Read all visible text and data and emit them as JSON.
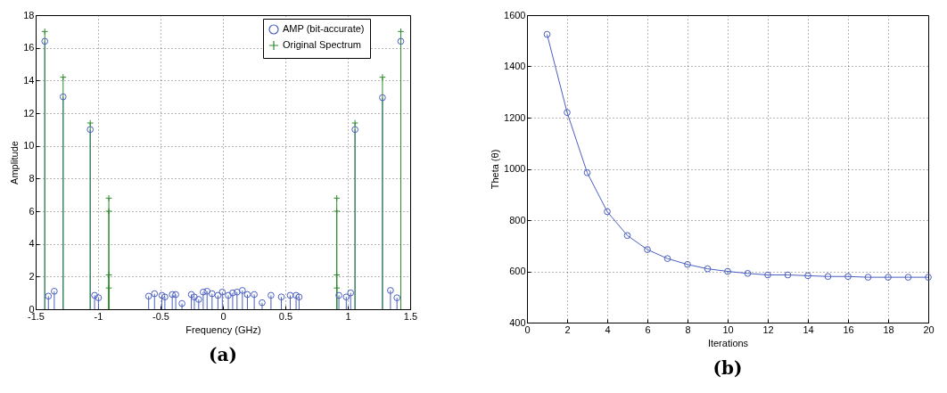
{
  "chart_data": [
    {
      "type": "lollipop",
      "title": "(a)",
      "xlabel": "Frequency (GHz)",
      "ylabel": "Amplitude",
      "xlim": [
        -1.5,
        1.5
      ],
      "xticks": [
        -1.5,
        -1,
        -0.5,
        0,
        0.5,
        1,
        1.5
      ],
      "ylim": [
        0,
        18
      ],
      "yticks": [
        0,
        2,
        4,
        6,
        8,
        10,
        12,
        14,
        16,
        18
      ],
      "grid": true,
      "legend": "top right",
      "series": [
        {
          "name": "AMP (bit-accurate)",
          "color": "#4a5fc1",
          "marker": "circle",
          "x": [
            -1.427,
            -1.398,
            -1.351,
            -1.28,
            -1.063,
            -1.028,
            -0.997,
            -0.595,
            -0.548,
            -0.489,
            -0.465,
            -0.406,
            -0.378,
            -0.328,
            -0.253,
            -0.229,
            -0.194,
            -0.158,
            -0.127,
            -0.087,
            -0.04,
            -0.005,
            0.043,
            0.078,
            0.113,
            0.156,
            0.196,
            0.251,
            0.314,
            0.385,
            0.468,
            0.539,
            0.586,
            0.61,
            0.929,
            0.988,
            1.023,
            1.058,
            1.278,
            1.342,
            1.394,
            1.425
          ],
          "values": [
            16.4,
            0.8,
            1.1,
            13,
            11,
            0.85,
            0.7,
            0.8,
            0.95,
            0.85,
            0.75,
            0.9,
            0.9,
            0.35,
            0.9,
            0.75,
            0.6,
            1.05,
            1.1,
            0.95,
            0.85,
            1.05,
            0.85,
            1.0,
            1.05,
            1.15,
            0.9,
            0.9,
            0.4,
            0.85,
            0.75,
            0.85,
            0.85,
            0.75,
            0.85,
            0.75,
            1.0,
            11,
            12.95,
            1.15,
            0.7,
            16.4
          ]
        },
        {
          "name": "Original Spectrum",
          "color": "#2e8b2e",
          "marker": "cross",
          "x": [
            -1.427,
            -1.28,
            -1.063,
            -0.914,
            -0.914,
            -0.914,
            -0.914,
            0.912,
            0.912,
            0.912,
            0.912,
            1.058,
            1.278,
            1.425
          ],
          "values": [
            17,
            14.2,
            11.4,
            6.8,
            6,
            2.1,
            1.3,
            6.8,
            6,
            2.1,
            1.3,
            11.4,
            14.2,
            17
          ]
        }
      ]
    },
    {
      "type": "line",
      "title": "(b)",
      "xlabel": "Iterations",
      "ylabel": "Theta (θ)",
      "xlim": [
        0,
        20
      ],
      "xticks": [
        0,
        2,
        4,
        6,
        8,
        10,
        12,
        14,
        16,
        18,
        20
      ],
      "ylim": [
        400,
        1600
      ],
      "yticks": [
        400,
        600,
        800,
        1000,
        1200,
        1400,
        1600
      ],
      "grid": true,
      "series": [
        {
          "color": "#4a5fc1",
          "marker": "circle",
          "line_style": "solid",
          "x": [
            1,
            2,
            3,
            4,
            5,
            6,
            7,
            8,
            9,
            10,
            11,
            12,
            13,
            14,
            15,
            16,
            17,
            18,
            19,
            20
          ],
          "values": [
            1525,
            1220,
            985,
            833,
            740,
            685,
            650,
            627,
            610,
            600,
            592,
            586,
            586,
            583,
            580,
            580,
            577,
            577,
            577,
            577
          ]
        }
      ]
    }
  ]
}
